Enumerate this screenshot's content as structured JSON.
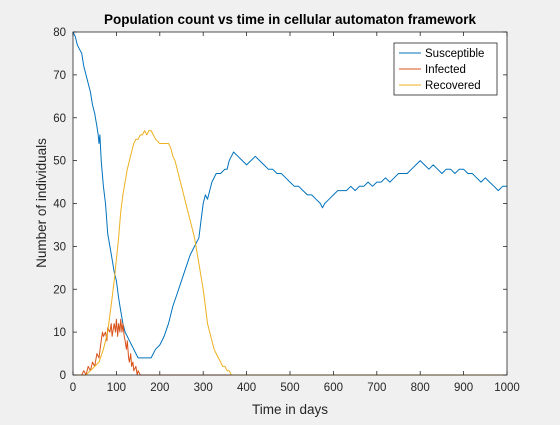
{
  "chart_data": {
    "type": "line",
    "title": "Population count vs time in cellular automaton framework",
    "xlabel": "Time in days",
    "ylabel": "Number of individuals",
    "xlim": [
      0,
      1000
    ],
    "ylim": [
      0,
      80
    ],
    "xticks": [
      0,
      100,
      200,
      300,
      400,
      500,
      600,
      700,
      800,
      900,
      1000
    ],
    "yticks": [
      0,
      10,
      20,
      30,
      40,
      50,
      60,
      70,
      80
    ],
    "grid": false,
    "legend_position": "top-right",
    "series": [
      {
        "name": "Susceptible",
        "color": "#0072bd",
        "points": [
          [
            0,
            80
          ],
          [
            5,
            79
          ],
          [
            10,
            77
          ],
          [
            15,
            76
          ],
          [
            20,
            75
          ],
          [
            25,
            72
          ],
          [
            30,
            70
          ],
          [
            35,
            68
          ],
          [
            40,
            66
          ],
          [
            45,
            63
          ],
          [
            50,
            61
          ],
          [
            55,
            58
          ],
          [
            58,
            56
          ],
          [
            60,
            54
          ],
          [
            62,
            56
          ],
          [
            65,
            50
          ],
          [
            70,
            44
          ],
          [
            75,
            40
          ],
          [
            80,
            33
          ],
          [
            85,
            30
          ],
          [
            90,
            27
          ],
          [
            95,
            24
          ],
          [
            100,
            22
          ],
          [
            105,
            18
          ],
          [
            110,
            15
          ],
          [
            115,
            12
          ],
          [
            120,
            10
          ],
          [
            125,
            9
          ],
          [
            130,
            8
          ],
          [
            135,
            7
          ],
          [
            140,
            6
          ],
          [
            145,
            5
          ],
          [
            150,
            4
          ],
          [
            160,
            4
          ],
          [
            170,
            4
          ],
          [
            180,
            4
          ],
          [
            185,
            5
          ],
          [
            190,
            6
          ],
          [
            200,
            7
          ],
          [
            210,
            9
          ],
          [
            220,
            12
          ],
          [
            230,
            16
          ],
          [
            240,
            19
          ],
          [
            250,
            22
          ],
          [
            260,
            25
          ],
          [
            270,
            28
          ],
          [
            280,
            30
          ],
          [
            290,
            32
          ],
          [
            295,
            36
          ],
          [
            300,
            40
          ],
          [
            305,
            42
          ],
          [
            310,
            41
          ],
          [
            320,
            45
          ],
          [
            330,
            47
          ],
          [
            340,
            47
          ],
          [
            350,
            48
          ],
          [
            355,
            48
          ],
          [
            360,
            50
          ],
          [
            365,
            51
          ],
          [
            370,
            52
          ],
          [
            380,
            51
          ],
          [
            390,
            50
          ],
          [
            400,
            49
          ],
          [
            410,
            50
          ],
          [
            420,
            51
          ],
          [
            430,
            50
          ],
          [
            440,
            49
          ],
          [
            450,
            48
          ],
          [
            460,
            48
          ],
          [
            470,
            47
          ],
          [
            480,
            47
          ],
          [
            490,
            46
          ],
          [
            500,
            45
          ],
          [
            510,
            44
          ],
          [
            520,
            44
          ],
          [
            530,
            43
          ],
          [
            540,
            42
          ],
          [
            550,
            42
          ],
          [
            560,
            41
          ],
          [
            570,
            40
          ],
          [
            575,
            39
          ],
          [
            580,
            40
          ],
          [
            590,
            41
          ],
          [
            600,
            42
          ],
          [
            610,
            43
          ],
          [
            620,
            43
          ],
          [
            630,
            43
          ],
          [
            640,
            44
          ],
          [
            650,
            43
          ],
          [
            660,
            44
          ],
          [
            670,
            44
          ],
          [
            680,
            45
          ],
          [
            690,
            44
          ],
          [
            700,
            45
          ],
          [
            710,
            45
          ],
          [
            720,
            46
          ],
          [
            730,
            45
          ],
          [
            740,
            46
          ],
          [
            750,
            47
          ],
          [
            760,
            47
          ],
          [
            770,
            47
          ],
          [
            780,
            48
          ],
          [
            790,
            49
          ],
          [
            800,
            50
          ],
          [
            810,
            49
          ],
          [
            820,
            48
          ],
          [
            830,
            49
          ],
          [
            840,
            48
          ],
          [
            850,
            47
          ],
          [
            860,
            48
          ],
          [
            870,
            48
          ],
          [
            880,
            47
          ],
          [
            890,
            48
          ],
          [
            900,
            48
          ],
          [
            910,
            47
          ],
          [
            920,
            47
          ],
          [
            930,
            46
          ],
          [
            940,
            45
          ],
          [
            950,
            46
          ],
          [
            960,
            45
          ],
          [
            970,
            44
          ],
          [
            980,
            43
          ],
          [
            990,
            44
          ],
          [
            1000,
            44
          ]
        ]
      },
      {
        "name": "Infected",
        "color": "#d95319",
        "points": [
          [
            0,
            0
          ],
          [
            10,
            0
          ],
          [
            20,
            0
          ],
          [
            25,
            1
          ],
          [
            30,
            0
          ],
          [
            35,
            2
          ],
          [
            40,
            1
          ],
          [
            45,
            3
          ],
          [
            50,
            2
          ],
          [
            55,
            5
          ],
          [
            60,
            4
          ],
          [
            65,
            8
          ],
          [
            68,
            10
          ],
          [
            70,
            9
          ],
          [
            75,
            10
          ],
          [
            78,
            8
          ],
          [
            80,
            11
          ],
          [
            85,
            10
          ],
          [
            88,
            12
          ],
          [
            90,
            9
          ],
          [
            95,
            12
          ],
          [
            98,
            10
          ],
          [
            100,
            13
          ],
          [
            103,
            9
          ],
          [
            105,
            12
          ],
          [
            108,
            10
          ],
          [
            110,
            13
          ],
          [
            113,
            10
          ],
          [
            115,
            12
          ],
          [
            118,
            9
          ],
          [
            120,
            8
          ],
          [
            123,
            6
          ],
          [
            125,
            8
          ],
          [
            128,
            4
          ],
          [
            130,
            3
          ],
          [
            133,
            5
          ],
          [
            135,
            2
          ],
          [
            138,
            3
          ],
          [
            140,
            1
          ],
          [
            145,
            2
          ],
          [
            148,
            0
          ],
          [
            150,
            1
          ],
          [
            155,
            0
          ],
          [
            160,
            0
          ],
          [
            200,
            0
          ],
          [
            300,
            0
          ],
          [
            400,
            0
          ],
          [
            500,
            0
          ],
          [
            600,
            0
          ],
          [
            700,
            0
          ],
          [
            800,
            0
          ],
          [
            900,
            0
          ],
          [
            1000,
            0
          ]
        ]
      },
      {
        "name": "Recovered",
        "color": "#edb120",
        "points": [
          [
            0,
            0
          ],
          [
            20,
            0
          ],
          [
            30,
            0
          ],
          [
            40,
            1
          ],
          [
            50,
            2
          ],
          [
            60,
            3
          ],
          [
            70,
            6
          ],
          [
            80,
            10
          ],
          [
            85,
            14
          ],
          [
            90,
            18
          ],
          [
            95,
            22
          ],
          [
            100,
            27
          ],
          [
            105,
            32
          ],
          [
            110,
            38
          ],
          [
            115,
            42
          ],
          [
            120,
            45
          ],
          [
            125,
            48
          ],
          [
            130,
            50
          ],
          [
            135,
            52
          ],
          [
            140,
            54
          ],
          [
            145,
            55
          ],
          [
            150,
            55
          ],
          [
            155,
            56
          ],
          [
            160,
            56
          ],
          [
            165,
            57
          ],
          [
            170,
            56
          ],
          [
            175,
            57
          ],
          [
            180,
            57
          ],
          [
            185,
            56
          ],
          [
            190,
            55
          ],
          [
            200,
            54
          ],
          [
            210,
            54
          ],
          [
            220,
            54
          ],
          [
            225,
            53
          ],
          [
            230,
            51
          ],
          [
            235,
            50
          ],
          [
            240,
            48
          ],
          [
            245,
            46
          ],
          [
            250,
            44
          ],
          [
            255,
            42
          ],
          [
            260,
            40
          ],
          [
            265,
            38
          ],
          [
            270,
            36
          ],
          [
            275,
            34
          ],
          [
            280,
            32
          ],
          [
            285,
            29
          ],
          [
            290,
            26
          ],
          [
            295,
            23
          ],
          [
            300,
            20
          ],
          [
            305,
            16
          ],
          [
            310,
            12
          ],
          [
            315,
            10
          ],
          [
            320,
            8
          ],
          [
            325,
            6
          ],
          [
            330,
            5
          ],
          [
            335,
            4
          ],
          [
            340,
            3
          ],
          [
            345,
            2
          ],
          [
            350,
            2
          ],
          [
            355,
            1
          ],
          [
            360,
            1
          ],
          [
            365,
            0
          ],
          [
            370,
            0
          ],
          [
            400,
            0
          ],
          [
            500,
            0
          ],
          [
            600,
            0
          ],
          [
            700,
            0
          ],
          [
            800,
            0
          ],
          [
            900,
            0
          ],
          [
            1000,
            0
          ]
        ]
      }
    ]
  }
}
